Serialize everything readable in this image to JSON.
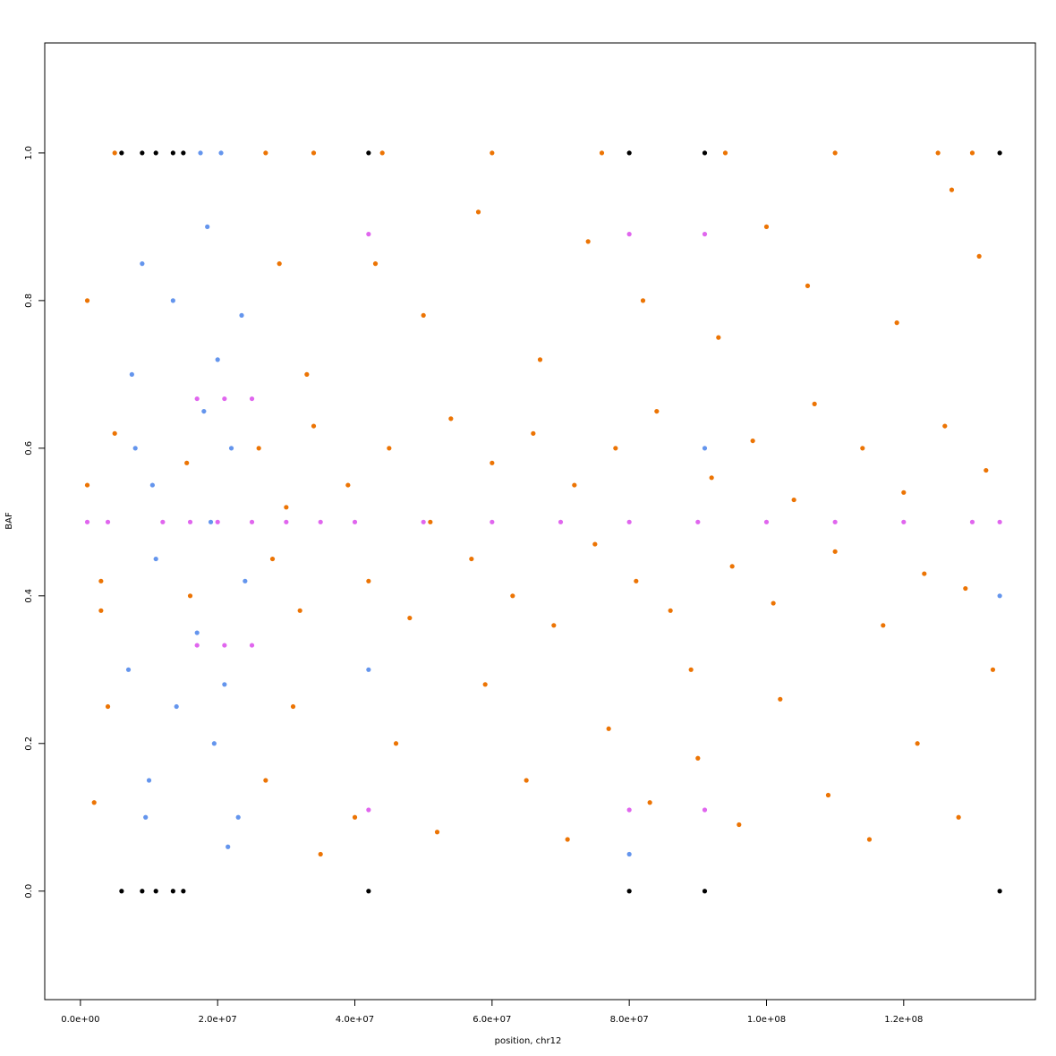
{
  "chart_data": {
    "type": "scatter",
    "x_label": "position, chr12",
    "y_label": "BAF",
    "xlim": [
      -5200000.0,
      139200000.0
    ],
    "ylim": [
      -0.147,
      1.149
    ],
    "xticks": [
      {
        "value": 0,
        "label": "0.0e+00"
      },
      {
        "value": 20000000.0,
        "label": "2.0e+07"
      },
      {
        "value": 40000000.0,
        "label": "4.0e+07"
      },
      {
        "value": 60000000.0,
        "label": "6.0e+07"
      },
      {
        "value": 80000000.0,
        "label": "8.0e+07"
      },
      {
        "value": 100000000.0,
        "label": "1.0e+08"
      },
      {
        "value": 120000000.0,
        "label": "1.2e+08"
      }
    ],
    "yticks": [
      {
        "value": 0,
        "label": "0.0"
      },
      0.2,
      0.4,
      0.6,
      0.8,
      {
        "value": 1,
        "label": "1.0"
      }
    ],
    "grid": false,
    "series": [
      {
        "color": "#ec7404",
        "x": [
          1000000.0,
          3000000.0,
          5000000.0,
          2000000.0,
          4000000.0,
          1000000.0,
          5000000.0,
          3000000.0,
          15500000.0,
          16000000.0,
          26000000.0,
          28000000.0,
          30000000.0,
          32000000.0,
          34000000.0,
          27000000.0,
          31000000.0,
          33000000.0,
          29000000.0,
          34000000.0,
          35000000.0,
          27000000.0,
          39000000.0,
          42000000.0,
          45000000.0,
          48000000.0,
          51000000.0,
          54000000.0,
          57000000.0,
          60000000.0,
          63000000.0,
          66000000.0,
          69000000.0,
          72000000.0,
          75000000.0,
          78000000.0,
          81000000.0,
          84000000.0,
          86000000.0,
          89000000.0,
          92000000.0,
          95000000.0,
          98000000.0,
          101000000.0,
          104000000.0,
          107000000.0,
          110000000.0,
          114000000.0,
          117000000.0,
          120000000.0,
          123000000.0,
          126000000.0,
          129000000.0,
          132000000.0,
          40000000.0,
          46000000.0,
          52000000.0,
          59000000.0,
          65000000.0,
          71000000.0,
          77000000.0,
          83000000.0,
          90000000.0,
          96000000.0,
          102000000.0,
          109000000.0,
          115000000.0,
          122000000.0,
          128000000.0,
          133000000.0,
          43000000.0,
          50000000.0,
          58000000.0,
          67000000.0,
          74000000.0,
          82000000.0,
          93000000.0,
          100000000.0,
          106000000.0,
          119000000.0,
          127000000.0,
          131000000.0,
          44000000.0,
          60000000.0,
          76000000.0,
          94000000.0,
          110000000.0,
          125000000.0,
          130000000.0
        ],
        "y": [
          0.55,
          0.42,
          0.62,
          0.12,
          0.25,
          0.8,
          1.0,
          0.38,
          0.58,
          0.4,
          0.6,
          0.45,
          0.52,
          0.38,
          0.63,
          0.15,
          0.25,
          0.7,
          0.85,
          1.0,
          0.05,
          1.0,
          0.55,
          0.42,
          0.6,
          0.37,
          0.5,
          0.64,
          0.45,
          0.58,
          0.4,
          0.62,
          0.36,
          0.55,
          0.47,
          0.6,
          0.42,
          0.65,
          0.38,
          0.3,
          0.56,
          0.44,
          0.61,
          0.39,
          0.53,
          0.66,
          0.46,
          0.6,
          0.36,
          0.54,
          0.43,
          0.63,
          0.41,
          0.57,
          0.1,
          0.2,
          0.08,
          0.28,
          0.15,
          0.07,
          0.22,
          0.12,
          0.18,
          0.09,
          0.26,
          0.13,
          0.07,
          0.2,
          0.1,
          0.3,
          0.85,
          0.78,
          0.92,
          0.72,
          0.88,
          0.8,
          0.75,
          0.9,
          0.82,
          0.77,
          0.95,
          0.86,
          1.0,
          1.0,
          1.0,
          1.0,
          1.0,
          1.0,
          1.0
        ]
      },
      {
        "color": "#6495ed",
        "x": [
          7000000.0,
          8000000.0,
          9000000.0,
          10000000.0,
          11000000.0,
          7500000.0,
          9500000.0,
          10500000.0,
          13500000.0,
          14000000.0,
          17000000.0,
          18000000.0,
          19000000.0,
          20000000.0,
          21000000.0,
          22000000.0,
          23000000.0,
          24000000.0,
          18500000.0,
          21500000.0,
          23500000.0,
          19500000.0,
          20500000.0,
          17500000.0,
          42000000.0,
          80000000.0,
          91000000.0,
          134000000.0
        ],
        "y": [
          0.3,
          0.6,
          0.85,
          0.15,
          0.45,
          0.7,
          0.1,
          0.55,
          0.8,
          0.25,
          0.35,
          0.65,
          0.5,
          0.72,
          0.28,
          0.6,
          0.1,
          0.42,
          0.9,
          0.06,
          0.78,
          0.2,
          1.0,
          1.0,
          0.3,
          0.05,
          0.6,
          0.4
        ]
      },
      {
        "color": "#e066ee",
        "x": [
          1000000.0,
          4000000.0,
          12000000.0,
          16000000.0,
          20000000.0,
          25000000.0,
          30000000.0,
          35000000.0,
          40000000.0,
          50000000.0,
          60000000.0,
          70000000.0,
          80000000.0,
          90000000.0,
          100000000.0,
          110000000.0,
          120000000.0,
          130000000.0,
          134000000.0,
          17000000.0,
          21000000.0,
          25000000.0,
          17000000.0,
          21000000.0,
          25000000.0,
          42000000.0,
          80000000.0,
          91000000.0,
          42000000.0,
          80000000.0,
          91000000.0
        ],
        "y": [
          0.5,
          0.5,
          0.5,
          0.5,
          0.5,
          0.5,
          0.5,
          0.5,
          0.5,
          0.5,
          0.5,
          0.5,
          0.5,
          0.5,
          0.5,
          0.5,
          0.5,
          0.5,
          0.5,
          0.667,
          0.667,
          0.667,
          0.333,
          0.333,
          0.333,
          0.89,
          0.89,
          0.89,
          0.11,
          0.11,
          0.11
        ]
      },
      {
        "color": "#000000",
        "x": [
          6000000.0,
          9000000.0,
          11000000.0,
          13500000.0,
          15000000.0,
          42000000.0,
          80000000.0,
          91000000.0,
          134000000.0,
          6000000.0,
          9000000.0,
          11000000.0,
          13500000.0,
          15000000.0,
          42000000.0,
          80000000.0,
          91000000.0,
          134000000.0
        ],
        "y": [
          0,
          0,
          0,
          0,
          0,
          0,
          0,
          0,
          0,
          1,
          1,
          1,
          1,
          1,
          1,
          1,
          1,
          1
        ]
      }
    ]
  }
}
